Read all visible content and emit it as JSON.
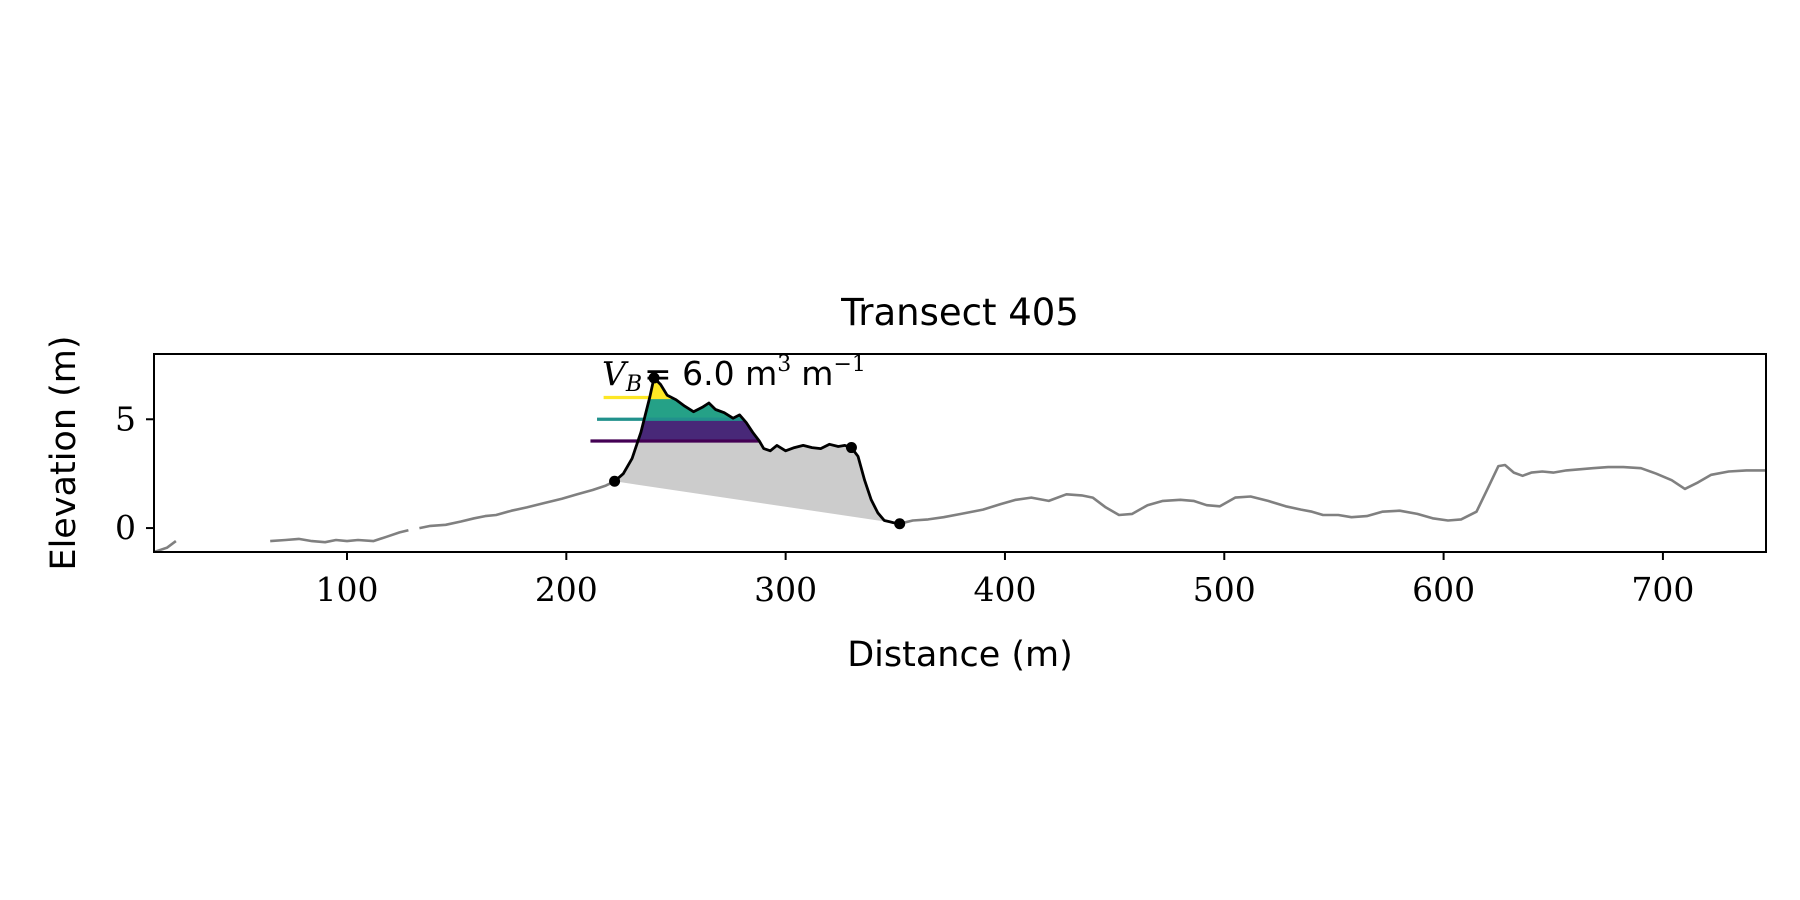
{
  "chart_data": {
    "type": "line",
    "title": "Transect 405",
    "xlabel": "Distance (m)",
    "ylabel": "Elevation (m)",
    "xlim": [
      12,
      747
    ],
    "ylim": [
      -1.1,
      8.0
    ],
    "x_ticks": [
      100,
      200,
      300,
      400,
      500,
      600,
      700
    ],
    "y_ticks": [
      0,
      5
    ],
    "grid": false,
    "annotation": {
      "text_main": "V",
      "text_sub": "B",
      "text_rest": "= 6.0 m",
      "text_sup1": "3",
      "text_unit2": "m",
      "text_sup2": "−1"
    },
    "profile_segments": [
      [
        [
          12,
          -1.1
        ],
        [
          15,
          -1.0
        ],
        [
          18,
          -0.9
        ],
        [
          22,
          -0.6
        ]
      ],
      [
        [
          65,
          -0.6
        ],
        [
          72,
          -0.55
        ],
        [
          78,
          -0.5
        ],
        [
          84,
          -0.6
        ],
        [
          90,
          -0.65
        ],
        [
          95,
          -0.55
        ],
        [
          100,
          -0.6
        ],
        [
          105,
          -0.55
        ],
        [
          112,
          -0.6
        ],
        [
          118,
          -0.4
        ],
        [
          124,
          -0.2
        ],
        [
          128,
          -0.1
        ]
      ],
      [
        [
          133,
          0.0
        ],
        [
          138,
          0.1
        ],
        [
          145,
          0.15
        ],
        [
          152,
          0.3
        ],
        [
          158,
          0.45
        ],
        [
          163,
          0.55
        ],
        [
          168,
          0.6
        ],
        [
          175,
          0.8
        ],
        [
          182,
          0.95
        ],
        [
          190,
          1.15
        ],
        [
          198,
          1.35
        ],
        [
          205,
          1.55
        ],
        [
          212,
          1.75
        ],
        [
          218,
          1.95
        ],
        [
          222,
          2.15
        ]
      ],
      [
        [
          352,
          0.2
        ],
        [
          358,
          0.35
        ],
        [
          365,
          0.4
        ],
        [
          372,
          0.5
        ],
        [
          380,
          0.65
        ],
        [
          390,
          0.85
        ],
        [
          398,
          1.1
        ],
        [
          405,
          1.3
        ],
        [
          412,
          1.4
        ],
        [
          420,
          1.25
        ],
        [
          428,
          1.55
        ],
        [
          435,
          1.5
        ],
        [
          440,
          1.4
        ],
        [
          446,
          0.95
        ],
        [
          452,
          0.6
        ],
        [
          458,
          0.65
        ],
        [
          465,
          1.05
        ],
        [
          472,
          1.25
        ],
        [
          480,
          1.3
        ],
        [
          486,
          1.25
        ],
        [
          492,
          1.05
        ],
        [
          498,
          1.0
        ],
        [
          505,
          1.4
        ],
        [
          512,
          1.45
        ],
        [
          520,
          1.25
        ],
        [
          528,
          1.0
        ],
        [
          535,
          0.85
        ],
        [
          540,
          0.75
        ],
        [
          545,
          0.6
        ],
        [
          552,
          0.6
        ],
        [
          558,
          0.5
        ],
        [
          565,
          0.55
        ],
        [
          572,
          0.75
        ],
        [
          580,
          0.8
        ],
        [
          588,
          0.65
        ],
        [
          595,
          0.45
        ],
        [
          602,
          0.35
        ],
        [
          608,
          0.4
        ],
        [
          615,
          0.75
        ],
        [
          620,
          1.8
        ],
        [
          625,
          2.85
        ],
        [
          628,
          2.9
        ],
        [
          632,
          2.55
        ],
        [
          636,
          2.4
        ],
        [
          640,
          2.55
        ],
        [
          645,
          2.6
        ],
        [
          650,
          2.55
        ],
        [
          656,
          2.65
        ],
        [
          662,
          2.7
        ],
        [
          668,
          2.75
        ],
        [
          675,
          2.8
        ],
        [
          682,
          2.8
        ],
        [
          690,
          2.75
        ],
        [
          697,
          2.5
        ],
        [
          704,
          2.2
        ],
        [
          710,
          1.8
        ],
        [
          716,
          2.1
        ],
        [
          722,
          2.45
        ],
        [
          730,
          2.6
        ],
        [
          738,
          2.65
        ],
        [
          747,
          2.65
        ]
      ]
    ],
    "dune_profile": [
      [
        222,
        2.15
      ],
      [
        226,
        2.5
      ],
      [
        230,
        3.2
      ],
      [
        234,
        4.4
      ],
      [
        236,
        5.2
      ],
      [
        238,
        6.0
      ],
      [
        240,
        6.9
      ],
      [
        243,
        6.6
      ],
      [
        246,
        6.1
      ],
      [
        250,
        5.9
      ],
      [
        254,
        5.6
      ],
      [
        258,
        5.35
      ],
      [
        262,
        5.55
      ],
      [
        265,
        5.75
      ],
      [
        268,
        5.45
      ],
      [
        272,
        5.3
      ],
      [
        276,
        5.05
      ],
      [
        279,
        5.2
      ],
      [
        282,
        4.85
      ],
      [
        285,
        4.4
      ],
      [
        288,
        4.0
      ],
      [
        290,
        3.65
      ],
      [
        293,
        3.55
      ],
      [
        296,
        3.8
      ],
      [
        300,
        3.55
      ],
      [
        304,
        3.7
      ],
      [
        308,
        3.8
      ],
      [
        312,
        3.7
      ],
      [
        316,
        3.65
      ],
      [
        320,
        3.85
      ],
      [
        324,
        3.75
      ],
      [
        327,
        3.8
      ],
      [
        330,
        3.7
      ],
      [
        333,
        3.3
      ],
      [
        336,
        2.2
      ],
      [
        339,
        1.3
      ],
      [
        342,
        0.7
      ],
      [
        345,
        0.35
      ],
      [
        349,
        0.25
      ],
      [
        352,
        0.2
      ]
    ],
    "markers": [
      [
        222,
        2.15
      ],
      [
        240,
        6.9
      ],
      [
        330,
        3.7
      ],
      [
        352,
        0.2
      ]
    ],
    "volume_base": [
      [
        222,
        2.15
      ],
      [
        352,
        0.2
      ]
    ],
    "water_levels": [
      {
        "level": 4.0,
        "x_start": 211,
        "color": "#440154"
      },
      {
        "level": 5.0,
        "x_start": 214,
        "color": "#21918c"
      },
      {
        "level": 6.0,
        "x_start": 217,
        "color": "#fde725"
      }
    ],
    "fill_colors": {
      "lower": "#482878",
      "middle": "#25a187",
      "upper": "#fde725",
      "volume": "#cccccc"
    },
    "line_colors": {
      "profile": "#808080",
      "dune": "#000000"
    }
  }
}
